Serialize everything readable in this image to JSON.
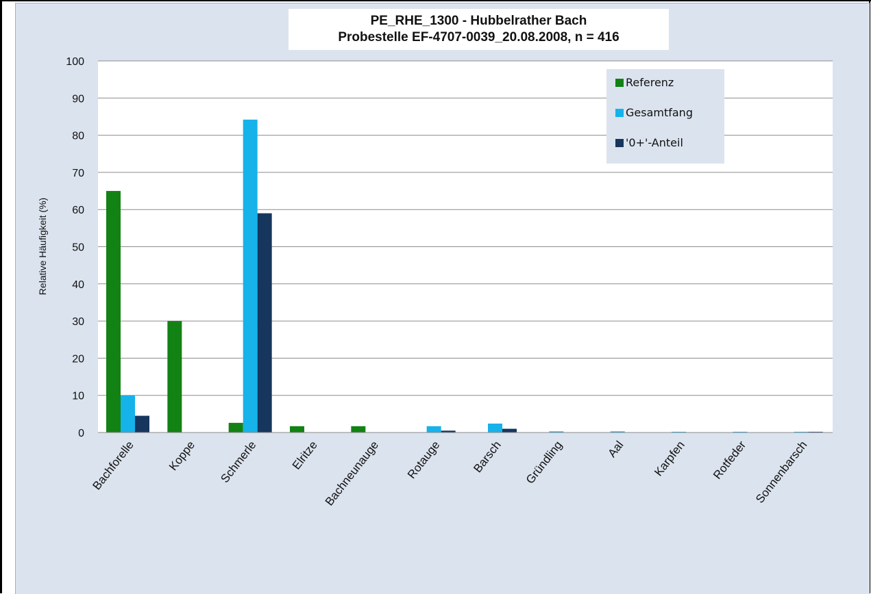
{
  "chart_data": {
    "type": "bar",
    "title_line1": "PE_RHE_1300 - Hubbelrather Bach",
    "title_line2": "Probestelle EF-4707-0039_20.08.2008, n = 416",
    "ylabel": "Relative Häufigkeit (%)",
    "ylim": [
      0,
      100
    ],
    "yticks": [
      0,
      10,
      20,
      30,
      40,
      50,
      60,
      70,
      80,
      90,
      100
    ],
    "grid": true,
    "legend_position": "top-right",
    "categories": [
      "Bachforelle",
      "Koppe",
      "Schmerle",
      "Elritze",
      "Bachneunauge",
      "Rotauge",
      "Barsch",
      "Gründling",
      "Aal",
      "Karpfen",
      "Rotfeder",
      "Sonnenbarsch"
    ],
    "series": [
      {
        "name": "Referenz",
        "color": "#128214",
        "values": [
          65,
          30,
          2.6,
          1.7,
          1.7,
          0,
          0,
          0,
          0,
          0,
          0,
          0
        ]
      },
      {
        "name": "Gesamtfang",
        "color": "#16b2ea",
        "values": [
          10,
          0,
          84.2,
          0,
          0,
          1.7,
          2.4,
          0.3,
          0.3,
          0.2,
          0.2,
          0.2
        ]
      },
      {
        "name": "'0+'-Anteil",
        "color": "#17365d",
        "values": [
          4.5,
          0,
          59,
          0,
          0,
          0.5,
          1,
          0,
          0,
          0,
          0,
          0.2
        ]
      }
    ]
  }
}
